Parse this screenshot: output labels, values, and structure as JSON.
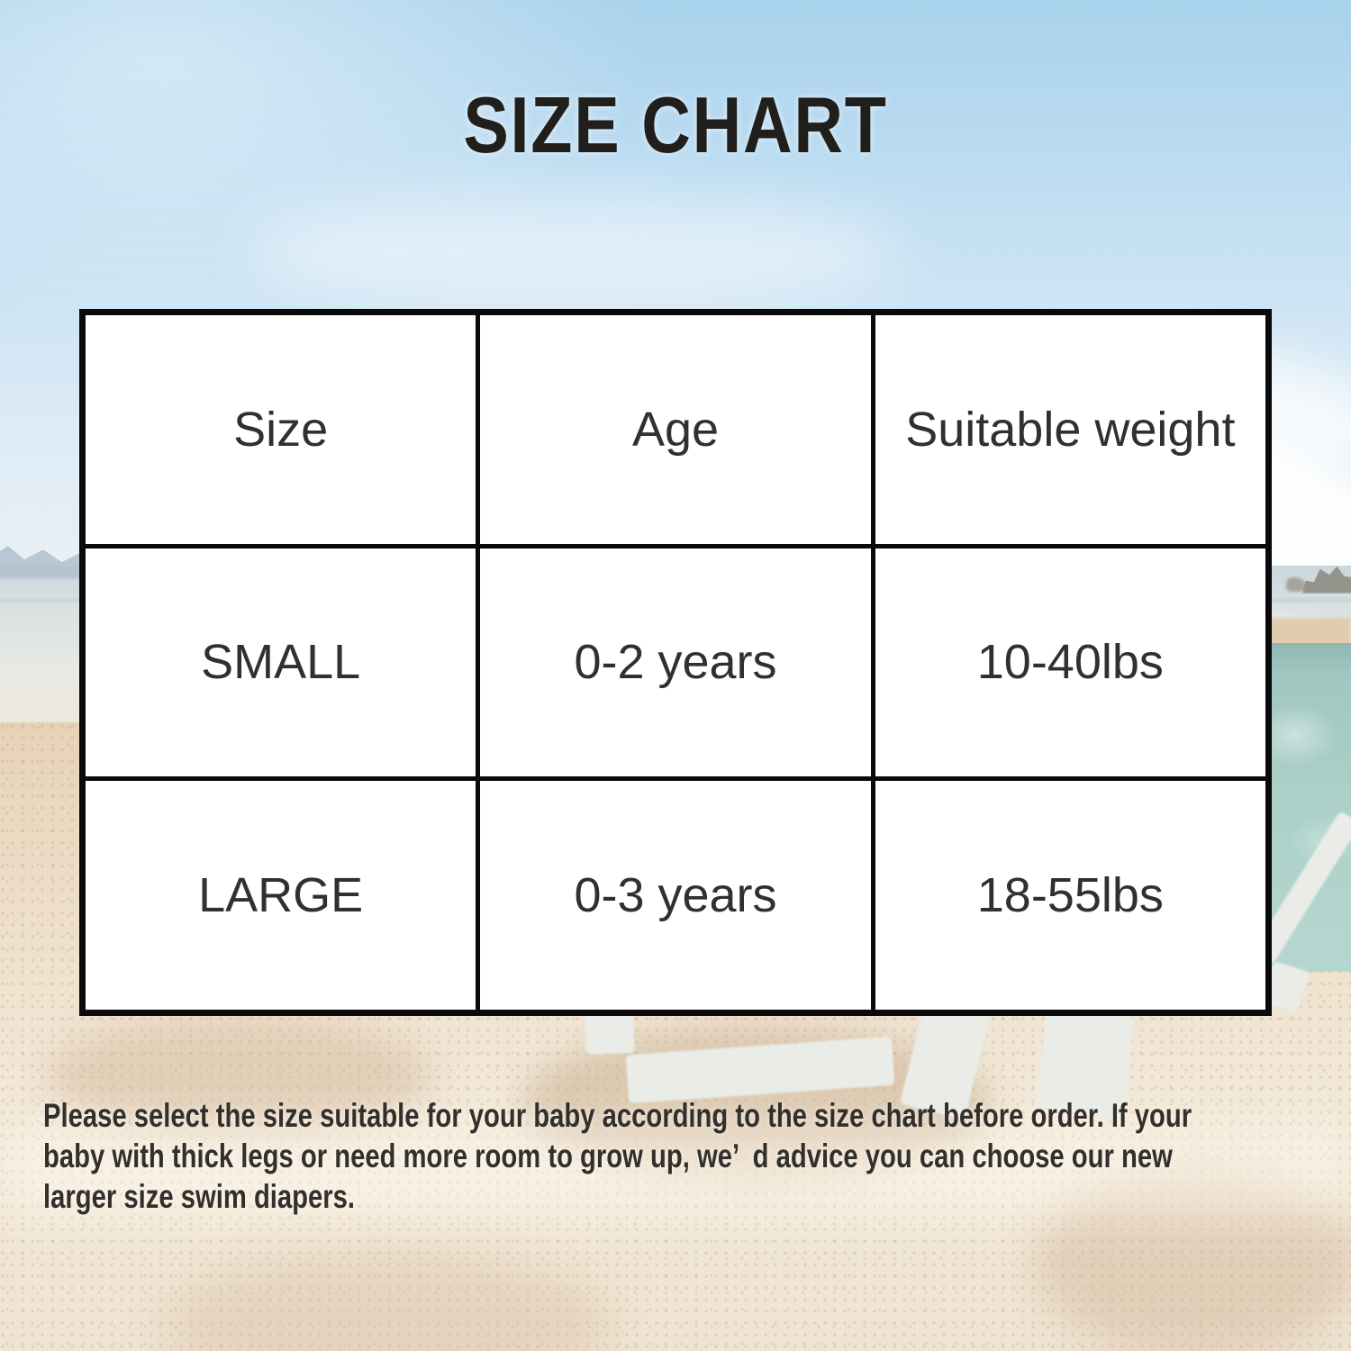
{
  "title": "SIZE CHART",
  "chart_data": {
    "type": "table",
    "title": "SIZE CHART",
    "columns": [
      "Size",
      "Age",
      "Suitable weight"
    ],
    "rows": [
      [
        "SMALL",
        "0-2 years",
        "10-40lbs"
      ],
      [
        "LARGE",
        "0-3 years",
        "18-55lbs"
      ]
    ]
  },
  "note": {
    "lines": [
      "Please select the size suitable for your baby according to the size chart before order. If your",
      "baby with thick legs or need more room to grow up, we’ d advice you can choose our new",
      "larger size swim diapers."
    ]
  },
  "colors": {
    "sky_top": "#a9d2ec",
    "sand": "#ecdcc5",
    "water_turquoise": "#a3c9c2",
    "table_border": "#0a0a0a",
    "cell_background": "#ffffff",
    "text_dark": "#2e2c28"
  }
}
